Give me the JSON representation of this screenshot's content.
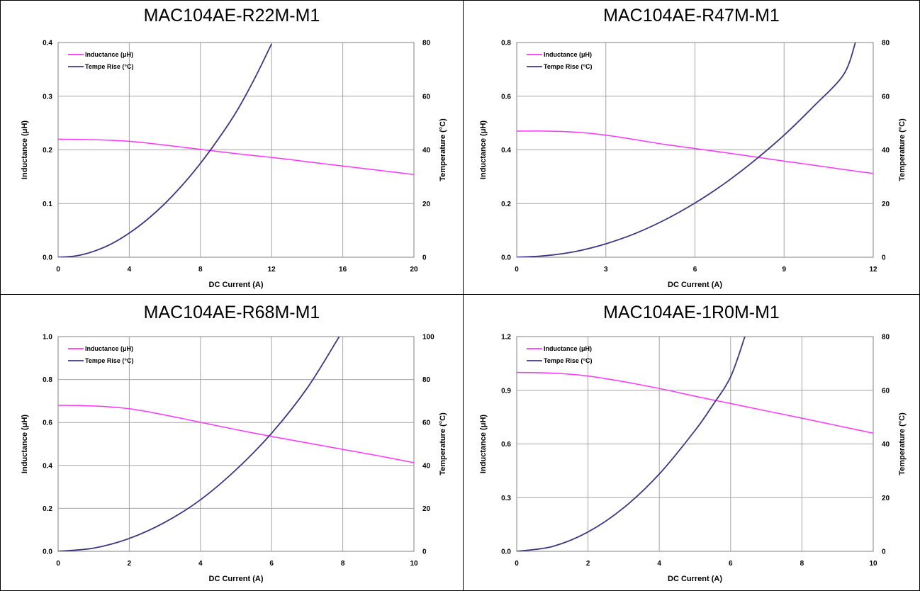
{
  "colors": {
    "inductance": "#ff33ff",
    "temperature": "#3b3882",
    "grid": "#a6a6a6",
    "axis": "#808080",
    "text": "#000000"
  },
  "chart_data": [
    {
      "type": "line",
      "title": "MAC104AE-R22M-M1",
      "xlabel": "DC Current (A)",
      "ylabel": "Inductance (μH)",
      "y2label": "Temperature (°C)",
      "xlim": [
        0,
        20
      ],
      "ylim": [
        0,
        0.4
      ],
      "y2lim": [
        0,
        80
      ],
      "xticks": [
        "0",
        "4",
        "8",
        "12",
        "16",
        "20"
      ],
      "yticks": [
        "0.0",
        "0.1",
        "0.2",
        "0.3",
        "0.4"
      ],
      "y2ticks": [
        "0",
        "20",
        "40",
        "60",
        "80"
      ],
      "grid": true,
      "legend_position": "top-left",
      "series": [
        {
          "name": "Inductance (μH)",
          "axis": "left",
          "color": "#ff33ff",
          "points": [
            [
              0,
              0.22
            ],
            [
              2,
              0.219
            ],
            [
              4,
              0.216
            ],
            [
              6,
              0.209
            ],
            [
              8,
              0.201
            ],
            [
              10,
              0.193
            ],
            [
              12,
              0.186
            ],
            [
              14,
              0.178
            ],
            [
              16,
              0.17
            ],
            [
              18,
              0.162
            ],
            [
              20,
              0.154
            ]
          ]
        },
        {
          "name": "Tempe Rise (°C)",
          "axis": "right",
          "color": "#3b3882",
          "points": [
            [
              0,
              0
            ],
            [
              1,
              0.5
            ],
            [
              2,
              2.2
            ],
            [
              3,
              5
            ],
            [
              4,
              9
            ],
            [
              5,
              14
            ],
            [
              6,
              20
            ],
            [
              7,
              27
            ],
            [
              8,
              35
            ],
            [
              9,
              44
            ],
            [
              10,
              54
            ],
            [
              11,
              66
            ],
            [
              12,
              79.5
            ]
          ]
        }
      ]
    },
    {
      "type": "line",
      "title": "MAC104AE-R47M-M1",
      "xlabel": "DC Current (A)",
      "ylabel": "Inductance (μH)",
      "y2label": "Temperature (°C)",
      "xlim": [
        0,
        12
      ],
      "ylim": [
        0,
        0.8
      ],
      "y2lim": [
        0,
        80
      ],
      "xticks": [
        "0",
        "3",
        "6",
        "9",
        "12"
      ],
      "yticks": [
        "0.0",
        "0.2",
        "0.4",
        "0.6",
        "0.8"
      ],
      "y2ticks": [
        "0",
        "20",
        "40",
        "60",
        "80"
      ],
      "grid": true,
      "legend_position": "top-left",
      "series": [
        {
          "name": "Inductance (μH)",
          "axis": "left",
          "color": "#ff33ff",
          "points": [
            [
              0,
              0.47
            ],
            [
              1,
              0.47
            ],
            [
              2,
              0.466
            ],
            [
              3,
              0.455
            ],
            [
              4,
              0.438
            ],
            [
              5,
              0.42
            ],
            [
              6,
              0.405
            ],
            [
              7,
              0.39
            ],
            [
              8,
              0.374
            ],
            [
              9,
              0.358
            ],
            [
              10,
              0.343
            ],
            [
              11,
              0.327
            ],
            [
              12,
              0.312
            ]
          ]
        },
        {
          "name": "Tempe Rise (°C)",
          "axis": "right",
          "color": "#3b3882",
          "points": [
            [
              0,
              0
            ],
            [
              1,
              0.6
            ],
            [
              2,
              2.2
            ],
            [
              3,
              5
            ],
            [
              4,
              8.9
            ],
            [
              5,
              14
            ],
            [
              6,
              20.2
            ],
            [
              7,
              27.5
            ],
            [
              8,
              36
            ],
            [
              9,
              45.5
            ],
            [
              10,
              56.3
            ],
            [
              11,
              68
            ],
            [
              11.4,
              80
            ]
          ]
        }
      ]
    },
    {
      "type": "line",
      "title": "MAC104AE-R68M-M1",
      "xlabel": "DC Current (A)",
      "ylabel": "Inductance (μH)",
      "y2label": "Temperature (°C)",
      "xlim": [
        0,
        10
      ],
      "ylim": [
        0,
        1.0
      ],
      "y2lim": [
        0,
        100
      ],
      "xticks": [
        "0",
        "2",
        "4",
        "6",
        "8",
        "10"
      ],
      "yticks": [
        "0.0",
        "0.2",
        "0.4",
        "0.6",
        "0.8",
        "1.0"
      ],
      "y2ticks": [
        "0",
        "20",
        "40",
        "60",
        "80",
        "100"
      ],
      "grid": true,
      "legend_position": "top-left",
      "series": [
        {
          "name": "Inductance (μH)",
          "axis": "left",
          "color": "#ff33ff",
          "points": [
            [
              0,
              0.68
            ],
            [
              1,
              0.677
            ],
            [
              2,
              0.664
            ],
            [
              3,
              0.635
            ],
            [
              4,
              0.601
            ],
            [
              5,
              0.567
            ],
            [
              6,
              0.535
            ],
            [
              7,
              0.505
            ],
            [
              8,
              0.475
            ],
            [
              9,
              0.445
            ],
            [
              10,
              0.413
            ]
          ]
        },
        {
          "name": "Tempe Rise (°C)",
          "axis": "right",
          "color": "#3b3882",
          "points": [
            [
              0,
              0
            ],
            [
              1,
              1.5
            ],
            [
              2,
              6
            ],
            [
              3,
              13.5
            ],
            [
              4,
              24
            ],
            [
              5,
              38
            ],
            [
              6,
              55
            ],
            [
              7,
              76
            ],
            [
              7.9,
              100
            ]
          ]
        }
      ]
    },
    {
      "type": "line",
      "title": "MAC104AE-1R0M-M1",
      "xlabel": "DC Current (A)",
      "ylabel": "Inductance (μH)",
      "y2label": "Temperature (°C)",
      "xlim": [
        0,
        10
      ],
      "ylim": [
        0,
        1.2
      ],
      "y2lim": [
        0,
        80
      ],
      "xticks": [
        "0",
        "2",
        "4",
        "6",
        "8",
        "10"
      ],
      "yticks": [
        "0.0",
        "0.3",
        "0.6",
        "0.9",
        "1.2"
      ],
      "y2ticks": [
        "0",
        "20",
        "40",
        "60",
        "80"
      ],
      "grid": true,
      "legend_position": "top-left",
      "series": [
        {
          "name": "Inductance (μH)",
          "axis": "left",
          "color": "#ff33ff",
          "points": [
            [
              0,
              1.0
            ],
            [
              1,
              0.996
            ],
            [
              2,
              0.98
            ],
            [
              3,
              0.948
            ],
            [
              4,
              0.91
            ],
            [
              5,
              0.867
            ],
            [
              6,
              0.826
            ],
            [
              7,
              0.785
            ],
            [
              8,
              0.744
            ],
            [
              9,
              0.702
            ],
            [
              10,
              0.66
            ]
          ]
        },
        {
          "name": "Tempe Rise (°C)",
          "axis": "right",
          "color": "#3b3882",
          "points": [
            [
              0,
              0
            ],
            [
              1,
              1.8
            ],
            [
              2,
              7.2
            ],
            [
              3,
              16.2
            ],
            [
              4,
              28.8
            ],
            [
              5,
              45
            ],
            [
              5.5,
              54.5
            ],
            [
              6,
              65
            ],
            [
              6.4,
              80
            ]
          ]
        }
      ]
    }
  ]
}
